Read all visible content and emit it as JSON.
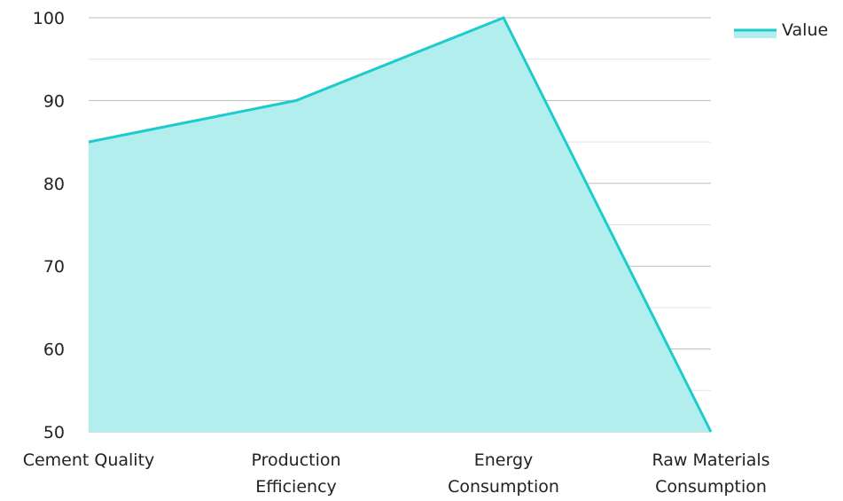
{
  "chart_data": {
    "type": "area",
    "categories": [
      "Cement Quality",
      "Production Efficiency",
      "Energy Consumption",
      "Raw Materials Consumption"
    ],
    "category_lines": [
      [
        "Cement Quality"
      ],
      [
        "Production",
        "Efficiency"
      ],
      [
        "Energy",
        "Consumption"
      ],
      [
        "Raw Materials",
        "Consumption"
      ]
    ],
    "series": [
      {
        "name": "Value",
        "values": [
          85,
          90,
          100,
          50
        ]
      }
    ],
    "yticks": [
      50,
      60,
      70,
      80,
      90,
      100
    ],
    "ylim": [
      50,
      100
    ],
    "grid": true,
    "legend_position": "top-right",
    "colors": {
      "line": "#1ecbcc",
      "fill": "#b2eeee",
      "grid_major": "#bdbdbd",
      "grid_minor": "#e3e3e3"
    }
  }
}
